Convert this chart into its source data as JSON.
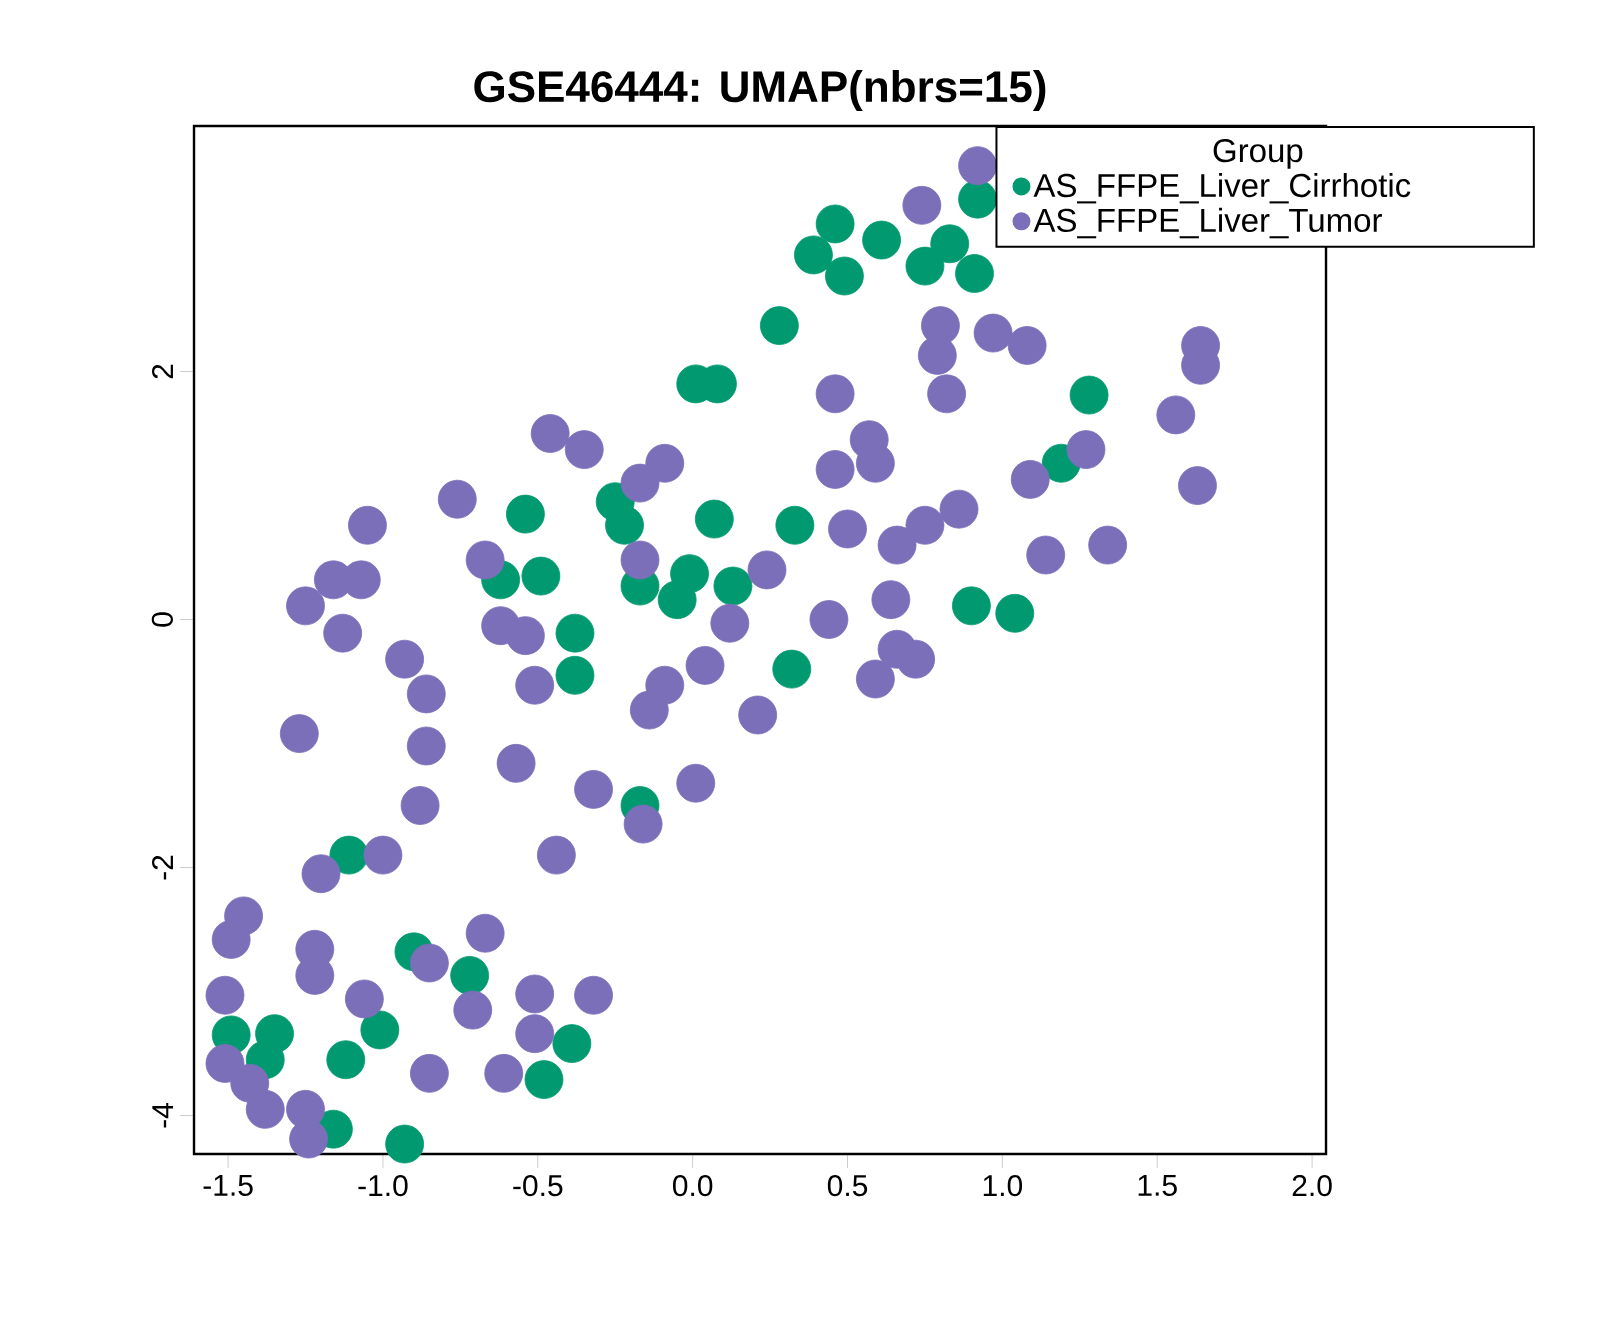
{
  "chart_data": {
    "type": "scatter",
    "title": "GSE46444: UMAP(nbrs=15)",
    "legend_title": "Group",
    "legend": "top right",
    "marker": "circle",
    "grid": false,
    "xlim": [
      -1.61,
      2.045
    ],
    "ylim": [
      -4.31,
      3.98
    ],
    "xticks": [
      -1.5,
      {
        "value": -1.0,
        "label": "-1.0"
      },
      -0.5,
      {
        "value": 0.0,
        "label": "0.0"
      },
      0.5,
      {
        "value": 1.0,
        "label": "1.0"
      },
      1.5,
      {
        "value": 2.0,
        "label": "2.0"
      }
    ],
    "yticks": [
      -4,
      -2,
      0,
      2
    ],
    "series": [
      {
        "name": "AS_FFPE_Liver_Cirrhotic",
        "color": "#019a70",
        "x": [
          0.46,
          0.39,
          0.49,
          0.61,
          0.83,
          0.75,
          0.91,
          0.92,
          0.28,
          1.28,
          1.19,
          0.33,
          0.9,
          1.04,
          0.01,
          0.08,
          -0.54,
          -0.25,
          -0.22,
          0.07,
          -0.62,
          -0.49,
          -0.17,
          -0.01,
          -0.05,
          0.13,
          -0.38,
          -0.38,
          0.32,
          -0.17,
          -1.11,
          -0.9,
          -0.72,
          -1.01,
          -1.35,
          -1.49,
          -1.38,
          -1.12,
          -0.39,
          -0.48,
          -1.16,
          -0.93
        ],
        "values": [
          3.19,
          2.94,
          2.77,
          3.06,
          3.03,
          2.85,
          2.79,
          3.39,
          2.37,
          1.81,
          1.26,
          0.76,
          0.11,
          0.05,
          1.9,
          1.9,
          0.85,
          0.95,
          0.76,
          0.81,
          0.32,
          0.35,
          0.27,
          0.37,
          0.16,
          0.27,
          -0.11,
          -0.45,
          -0.4,
          -1.5,
          -1.9,
          -2.68,
          -2.87,
          -3.31,
          -3.34,
          -3.35,
          -3.55,
          -3.55,
          -3.42,
          -3.71,
          -4.11,
          -4.23
        ]
      },
      {
        "name": "AS_FFPE_Liver_Tumor",
        "color": "#7b6fba",
        "x": [
          0.92,
          0.74,
          0.8,
          0.79,
          0.82,
          0.97,
          1.08,
          1.64,
          1.64,
          0.46,
          0.57,
          0.59,
          0.46,
          1.09,
          1.27,
          1.56,
          1.63,
          0.86,
          0.75,
          0.66,
          0.5,
          0.24,
          1.14,
          1.34,
          0.64,
          0.44,
          -0.46,
          -0.35,
          -0.17,
          -0.09,
          -0.76,
          -1.05,
          -1.16,
          -1.07,
          -1.25,
          -0.67,
          -0.17,
          0.12,
          -1.13,
          -0.62,
          -0.54,
          -0.93,
          -0.86,
          -1.27,
          -0.86,
          -0.88,
          -0.57,
          -0.51,
          0.04,
          -0.09,
          -0.14,
          0.21,
          -0.32,
          0.01,
          -0.16,
          -0.44,
          -1.0,
          -1.2,
          -1.45,
          -1.49,
          -1.22,
          -1.22,
          -1.06,
          -1.51,
          -0.85,
          -0.67,
          -0.71,
          -0.51,
          -0.51,
          -0.32,
          -1.51,
          -1.43,
          -1.38,
          -1.25,
          -1.24,
          -0.85,
          -0.61,
          0.59,
          0.72,
          0.66
        ],
        "values": [
          3.66,
          3.34,
          2.37,
          2.13,
          1.82,
          2.31,
          2.21,
          2.21,
          2.05,
          1.82,
          1.45,
          1.26,
          1.21,
          1.13,
          1.37,
          1.65,
          1.08,
          0.89,
          0.76,
          0.6,
          0.73,
          0.4,
          0.52,
          0.6,
          0.16,
          0.0,
          1.5,
          1.37,
          1.1,
          1.26,
          0.97,
          0.76,
          0.32,
          0.32,
          0.11,
          0.48,
          0.48,
          -0.03,
          -0.11,
          -0.05,
          -0.13,
          -0.32,
          -0.6,
          -0.92,
          -1.02,
          -1.5,
          -1.16,
          -0.53,
          -0.37,
          -0.53,
          -0.73,
          -0.77,
          -1.37,
          -1.32,
          -1.65,
          -1.9,
          -1.9,
          -2.05,
          -2.39,
          -2.58,
          -2.66,
          -2.87,
          -3.06,
          -3.03,
          -2.77,
          -2.53,
          -3.15,
          -3.02,
          -3.34,
          -3.03,
          -3.58,
          -3.74,
          -3.95,
          -3.95,
          -4.19,
          -3.66,
          -3.66,
          -0.48,
          -0.32,
          -0.24
        ]
      }
    ]
  }
}
